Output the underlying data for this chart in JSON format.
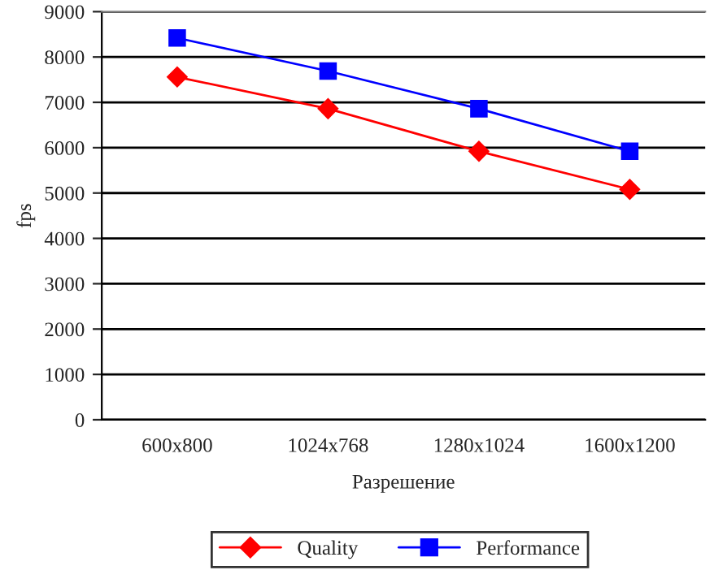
{
  "chart_data": {
    "type": "line",
    "xlabel": "Разрешение",
    "ylabel": "fps",
    "categories": [
      "600x800",
      "1024x768",
      "1280x1024",
      "1600x1200"
    ],
    "series": [
      {
        "name": "Quality",
        "color": "#ff0000",
        "marker": "diamond",
        "values": [
          7560,
          6860,
          5920,
          5080
        ]
      },
      {
        "name": "Performance",
        "color": "#0000ff",
        "marker": "square",
        "values": [
          8420,
          7690,
          6860,
          5920
        ]
      }
    ],
    "ylim": [
      0,
      9000
    ],
    "yticks": [
      0,
      1000,
      2000,
      3000,
      4000,
      5000,
      6000,
      7000,
      8000,
      9000
    ],
    "grid": "y",
    "legend": "bottom",
    "line_style": "solid"
  }
}
